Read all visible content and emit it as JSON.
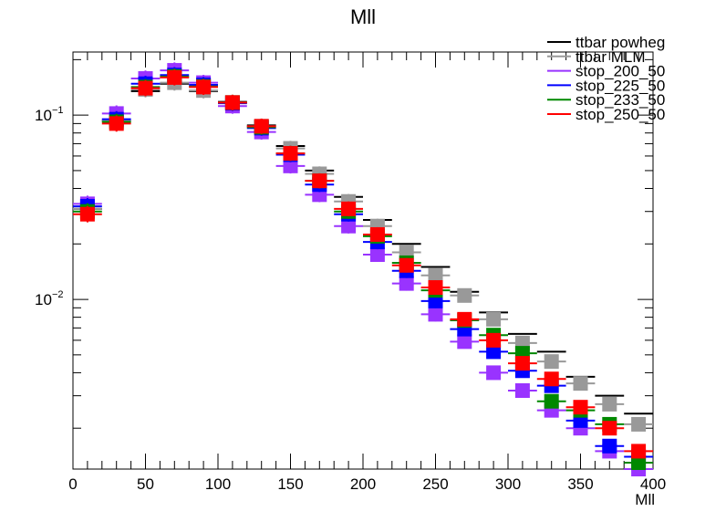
{
  "chart_data": {
    "type": "scatter",
    "title": "Mll",
    "xlabel": "Mll",
    "ylabel": "",
    "xlim": [
      0,
      400
    ],
    "ylim": [
      0.0012,
      0.22
    ],
    "yscale": "log",
    "grid": false,
    "legend_position": "top-right",
    "x_ticks": [
      "0",
      "50",
      "100",
      "150",
      "200",
      "250",
      "300",
      "350",
      "400"
    ],
    "y_ticks": [
      {
        "value": 0.1,
        "label": "10",
        "exp": "−1"
      },
      {
        "value": 0.01,
        "label": "10",
        "exp": "−2"
      }
    ],
    "bin_width": 20,
    "x": [
      10,
      30,
      50,
      70,
      90,
      110,
      130,
      150,
      170,
      190,
      210,
      230,
      250,
      270,
      290,
      310,
      330,
      350,
      370,
      390
    ],
    "series": [
      {
        "name": "ttbar powheg",
        "color": "#000000",
        "marker": false,
        "values": [
          0.031,
          0.093,
          0.135,
          0.148,
          0.135,
          0.118,
          0.088,
          0.068,
          0.05,
          0.036,
          0.027,
          0.02,
          0.015,
          0.011,
          0.0085,
          0.0065,
          0.0052,
          0.0038,
          0.003,
          0.0024
        ]
      },
      {
        "name": "ttbar MLM",
        "color": "#999999",
        "marker": true,
        "values": [
          0.031,
          0.094,
          0.138,
          0.15,
          0.136,
          0.117,
          0.087,
          0.066,
          0.048,
          0.034,
          0.025,
          0.018,
          0.0135,
          0.0105,
          0.0078,
          0.0058,
          0.0046,
          0.0035,
          0.0027,
          0.0021
        ]
      },
      {
        "name": "stop_200_50",
        "color": "#9933ff",
        "marker": true,
        "values": [
          0.033,
          0.102,
          0.158,
          0.175,
          0.15,
          0.112,
          0.081,
          0.053,
          0.037,
          0.025,
          0.0175,
          0.0122,
          0.0083,
          0.0059,
          0.004,
          0.0032,
          0.0025,
          0.002,
          0.0015,
          0.0012
        ]
      },
      {
        "name": "stop_225_50",
        "color": "#0000ff",
        "marker": true,
        "values": [
          0.032,
          0.095,
          0.148,
          0.165,
          0.146,
          0.116,
          0.085,
          0.061,
          0.042,
          0.029,
          0.0205,
          0.0143,
          0.0098,
          0.0069,
          0.0052,
          0.0041,
          0.0034,
          0.0022,
          0.0016,
          0.0014
        ]
      },
      {
        "name": "stop_233_50",
        "color": "#008800",
        "marker": true,
        "values": [
          0.03,
          0.092,
          0.142,
          0.162,
          0.143,
          0.117,
          0.086,
          0.062,
          0.044,
          0.03,
          0.022,
          0.0158,
          0.0112,
          0.0077,
          0.0064,
          0.0051,
          0.0028,
          0.0025,
          0.0021,
          0.0013
        ]
      },
      {
        "name": "stop_250_50",
        "color": "#ff0000",
        "marker": true,
        "values": [
          0.029,
          0.09,
          0.14,
          0.16,
          0.142,
          0.117,
          0.087,
          0.062,
          0.044,
          0.031,
          0.0225,
          0.0153,
          0.0116,
          0.0078,
          0.006,
          0.0045,
          0.0037,
          0.0026,
          0.002,
          0.0015
        ]
      }
    ]
  }
}
